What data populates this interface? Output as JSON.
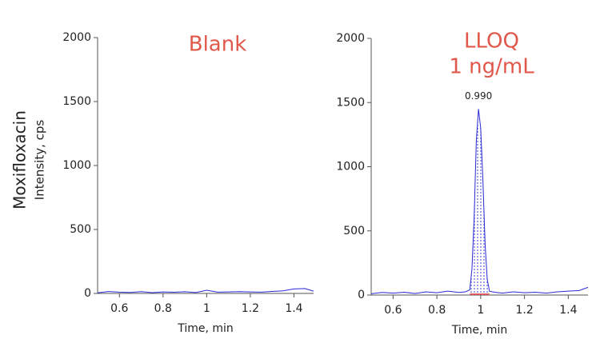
{
  "shared_ylabel": {
    "title": "Moxifloxacin",
    "subtitle": "Intensity, cps"
  },
  "chart_data": [
    {
      "type": "line",
      "title": "Blank",
      "xlabel": "Time, min",
      "xlim": [
        0.5,
        1.49
      ],
      "xticks": [
        0.6,
        0.8,
        1.0,
        1.2,
        1.4
      ],
      "ylim": [
        0,
        2000
      ],
      "yticks": [
        0,
        500,
        1000,
        1500,
        2000
      ],
      "x": [
        0.5,
        0.55,
        0.6,
        0.65,
        0.7,
        0.75,
        0.8,
        0.85,
        0.9,
        0.95,
        1.0,
        1.05,
        1.1,
        1.15,
        1.2,
        1.25,
        1.3,
        1.35,
        1.4,
        1.45,
        1.49
      ],
      "series": [
        {
          "color": "#2a2ad6",
          "values": [
            5,
            15,
            10,
            8,
            14,
            6,
            12,
            9,
            13,
            7,
            25,
            10,
            12,
            14,
            12,
            10,
            16,
            20,
            35,
            38,
            18
          ]
        }
      ]
    },
    {
      "type": "line",
      "title": "LLOQ",
      "subtitle": "1 ng/mL",
      "xlabel": "Time, min",
      "xlim": [
        0.5,
        1.49
      ],
      "xticks": [
        0.6,
        0.8,
        1.0,
        1.2,
        1.4
      ],
      "ylim": [
        0,
        2000
      ],
      "yticks": [
        0,
        500,
        1000,
        1500,
        2000
      ],
      "annotation": "0.990",
      "x": [
        0.5,
        0.55,
        0.6,
        0.65,
        0.7,
        0.75,
        0.8,
        0.85,
        0.9,
        0.93,
        0.95,
        0.96,
        0.97,
        0.98,
        0.99,
        1.0,
        1.01,
        1.02,
        1.03,
        1.04,
        1.07,
        1.1,
        1.15,
        1.2,
        1.25,
        1.3,
        1.35,
        1.4,
        1.45,
        1.49
      ],
      "series": [
        {
          "color": "#2a2ad6",
          "values": [
            10,
            20,
            15,
            22,
            12,
            25,
            18,
            30,
            20,
            25,
            40,
            200,
            600,
            1200,
            1450,
            1300,
            900,
            400,
            120,
            30,
            20,
            15,
            25,
            18,
            22,
            15,
            25,
            30,
            35,
            60
          ]
        }
      ],
      "integration": {
        "start": 0.95,
        "end": 1.04,
        "color": "#e03030"
      }
    }
  ]
}
